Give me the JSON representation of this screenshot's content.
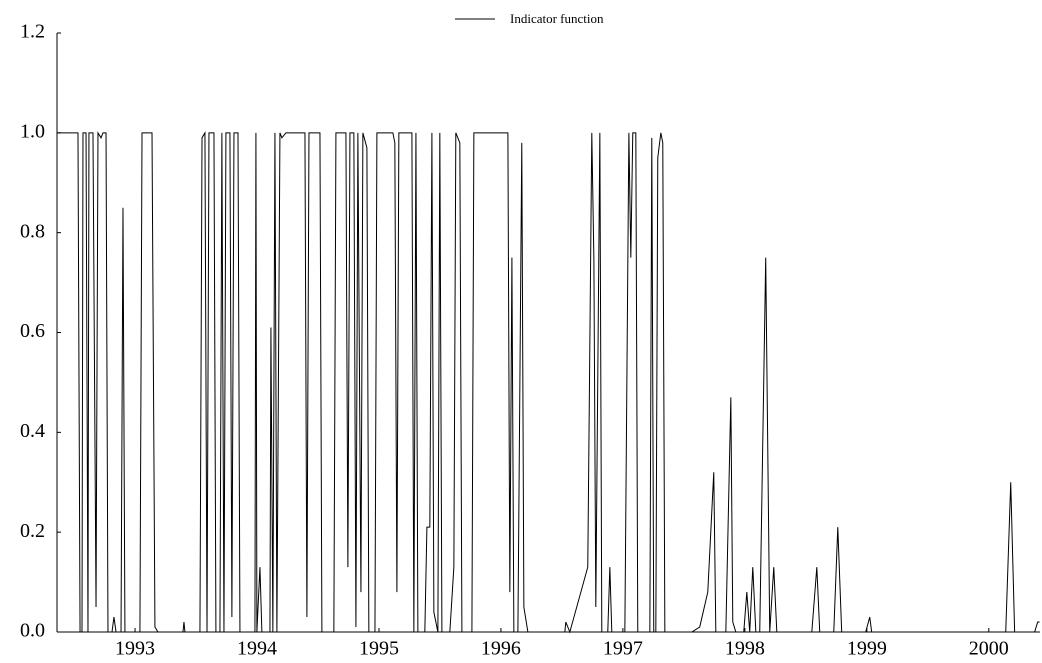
{
  "chart_data": {
    "type": "line",
    "x": [
      1992.36,
      1992.532,
      1992.549,
      1992.565,
      1992.573,
      1992.598,
      1992.614,
      1992.622,
      1992.655,
      1992.68,
      1992.696,
      1992.721,
      1992.737,
      1992.762,
      1992.778,
      1992.811,
      1992.827,
      1992.844,
      1992.885,
      1992.901,
      1992.917,
      1993.04,
      1993.057,
      1993.139,
      1993.163,
      1993.188,
      1993.393,
      1993.401,
      1993.409,
      1993.532,
      1993.549,
      1993.573,
      1993.59,
      1993.606,
      1993.647,
      1993.663,
      1993.696,
      1993.712,
      1993.729,
      1993.745,
      1993.778,
      1993.794,
      1993.811,
      1993.844,
      1993.86,
      1993.983,
      1993.991,
      1993.999,
      1994.024,
      1994.04,
      1994.106,
      1994.114,
      1994.13,
      1994.147,
      1994.163,
      1994.188,
      1994.204,
      1994.237,
      1994.393,
      1994.409,
      1994.426,
      1994.516,
      1994.532,
      1994.63,
      1994.647,
      1994.729,
      1994.745,
      1994.762,
      1994.794,
      1994.811,
      1994.827,
      1994.852,
      1994.868,
      1994.901,
      1994.917,
      1994.967,
      1994.983,
      1995.114,
      1995.13,
      1995.147,
      1995.163,
      1995.27,
      1995.286,
      1995.303,
      1995.319,
      1995.376,
      1995.393,
      1995.417,
      1995.434,
      1995.45,
      1995.483,
      1995.499,
      1995.516,
      1995.581,
      1995.614,
      1995.63,
      1995.663,
      1995.68,
      1995.762,
      1995.778,
      1995.811,
      1996.057,
      1996.073,
      1996.09,
      1996.106,
      1996.139,
      1996.171,
      1996.188,
      1996.221,
      1996.524,
      1996.532,
      1996.565,
      1996.712,
      1996.745,
      1996.762,
      1996.778,
      1996.811,
      1996.827,
      1996.876,
      1996.893,
      1996.909,
      1997.016,
      1997.049,
      1997.065,
      1997.081,
      1997.106,
      1997.122,
      1997.221,
      1997.237,
      1997.253,
      1997.27,
      1997.286,
      1997.311,
      1997.327,
      1997.344,
      1997.565,
      1997.63,
      1997.696,
      1997.745,
      1997.762,
      1997.844,
      1997.885,
      1997.901,
      1997.926,
      1997.991,
      1998.016,
      1998.04,
      1998.065,
      1998.09,
      1998.122,
      1998.171,
      1998.204,
      1998.237,
      1998.262,
      1998.549,
      1998.59,
      1998.614,
      1998.729,
      1998.762,
      1998.794,
      1998.991,
      1999.024,
      1999.04,
      2000.139,
      2000.18,
      2000.212,
      2000.376,
      2000.401,
      2000.417
    ],
    "series": [
      {
        "name": "Indicator function",
        "color": "#000000",
        "values": [
          1,
          1,
          0,
          0,
          1,
          1,
          0,
          1,
          1,
          0.05,
          1,
          0.99,
          1,
          1,
          0,
          0,
          0.03,
          0,
          0,
          0.85,
          0,
          0,
          1,
          1,
          0.01,
          0,
          0,
          0.02,
          0,
          0,
          0.99,
          1,
          0,
          1,
          1,
          0,
          0,
          1,
          0,
          1,
          1,
          0.03,
          1,
          1,
          0,
          0,
          1,
          0,
          0.13,
          0,
          0,
          0.61,
          0,
          1,
          0,
          1,
          0.99,
          1,
          1,
          0.03,
          1,
          1,
          0,
          0,
          1,
          1,
          0.13,
          1,
          1,
          0.01,
          1,
          0.08,
          1,
          0.97,
          0,
          0,
          1,
          1,
          0.98,
          0.08,
          1,
          1,
          0,
          1,
          0,
          0,
          0.21,
          0.21,
          1,
          0.04,
          0,
          1,
          0,
          0,
          0.13,
          1,
          0.98,
          0,
          0,
          1,
          1,
          1,
          0.08,
          0.75,
          0,
          0,
          0.98,
          0.05,
          0,
          0,
          0.02,
          0,
          0.13,
          1,
          0.75,
          0.05,
          1,
          0,
          0,
          0.13,
          0,
          0,
          1,
          0.75,
          1,
          1,
          0,
          0,
          0.99,
          0,
          0,
          0.95,
          1,
          0.98,
          0,
          0,
          0.01,
          0.08,
          0.32,
          0,
          0,
          0.47,
          0.02,
          0,
          0,
          0.08,
          0,
          0.13,
          0,
          0,
          0.75,
          0,
          0.13,
          0,
          0,
          0.13,
          0,
          0,
          0.21,
          0,
          0,
          0.03,
          0,
          0,
          0.3,
          0,
          0,
          0.02,
          0.02
        ]
      }
    ],
    "xlim": [
      1992.36,
      2000.42
    ],
    "xticks": [
      1993,
      1994,
      1995,
      1996,
      1997,
      1998,
      1999,
      2000
    ],
    "ylim": [
      0,
      1.2
    ],
    "yticks": [
      {
        "value": 0,
        "label": "0.0"
      },
      {
        "value": 0.2,
        "label": "0.2"
      },
      {
        "value": 0.4,
        "label": "0.4"
      },
      {
        "value": 0.6,
        "label": "0.6"
      },
      {
        "value": 0.8,
        "label": "0.8"
      },
      {
        "value": 1,
        "label": "1.0"
      },
      {
        "value": 1.2,
        "label": "1.2"
      }
    ]
  }
}
